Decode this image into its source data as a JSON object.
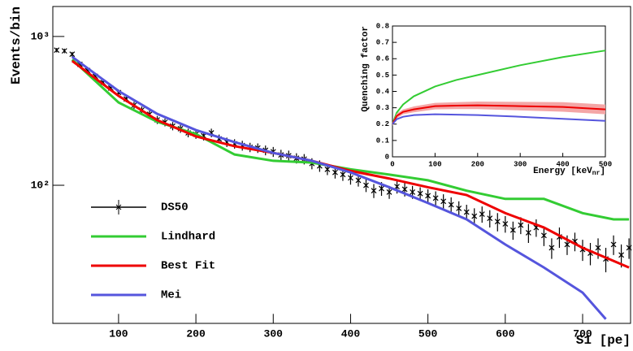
{
  "chart_data": [
    {
      "type": "line",
      "x_label": "S1 [pe]",
      "y_label": "Events/bin",
      "log_y": true,
      "xlim": [
        15,
        762
      ],
      "ylim": [
        11.8,
        1590
      ],
      "xticks": [
        100,
        200,
        300,
        400,
        500,
        600,
        700
      ],
      "yticks": [
        {
          "value": 100,
          "label": "10²"
        },
        {
          "value": 1000,
          "label": "10³"
        }
      ],
      "legend": "lower left",
      "series": [
        {
          "name": "DS50",
          "type": "errorbar",
          "color": "#000000",
          "x": [
            20,
            30,
            40,
            50,
            60,
            70,
            80,
            90,
            100,
            110,
            120,
            130,
            140,
            150,
            160,
            170,
            180,
            190,
            200,
            210,
            220,
            230,
            240,
            250,
            260,
            270,
            280,
            290,
            300,
            310,
            320,
            330,
            340,
            350,
            360,
            370,
            380,
            390,
            400,
            410,
            420,
            430,
            440,
            450,
            460,
            470,
            480,
            490,
            500,
            510,
            520,
            530,
            540,
            550,
            560,
            570,
            580,
            590,
            600,
            610,
            620,
            630,
            640,
            650,
            660,
            670,
            680,
            690,
            700,
            710,
            720,
            730,
            740,
            750,
            760
          ],
          "values": [
            810,
            800,
            760,
            650,
            590,
            540,
            490,
            450,
            420,
            380,
            345,
            320,
            300,
            275,
            265,
            250,
            240,
            225,
            220,
            215,
            225,
            205,
            195,
            190,
            185,
            180,
            178,
            172,
            168,
            160,
            158,
            152,
            150,
            140,
            135,
            128,
            122,
            118,
            112,
            108,
            100,
            92,
            95,
            90,
            98,
            94,
            90,
            88,
            85,
            82,
            78,
            74,
            70,
            66,
            62,
            64,
            60,
            57,
            55,
            50,
            54,
            48,
            52,
            46,
            38,
            45,
            40,
            42,
            37,
            35,
            38,
            32,
            40,
            34,
            38
          ],
          "errors": [
            28,
            28,
            28,
            25,
            24,
            23,
            22,
            21,
            20,
            19,
            19,
            18,
            17,
            17,
            16,
            16,
            15,
            15,
            15,
            15,
            15,
            14,
            14,
            14,
            14,
            13,
            13,
            13,
            13,
            13,
            13,
            12,
            12,
            12,
            12,
            11,
            11,
            11,
            11,
            10,
            10,
            10,
            10,
            9,
            10,
            10,
            9,
            9,
            9,
            9,
            9,
            9,
            8,
            8,
            8,
            8,
            8,
            8,
            7,
            7,
            7,
            7,
            7,
            7,
            6,
            7,
            6,
            6,
            6,
            6,
            6,
            6,
            6,
            6,
            6
          ]
        },
        {
          "name": "Lindhard",
          "color": "#33cc33",
          "x": [
            40,
            100,
            150,
            200,
            250,
            300,
            350,
            400,
            450,
            500,
            550,
            600,
            650,
            700,
            740,
            760
          ],
          "values": [
            700,
            360,
            267,
            221,
            161,
            146,
            142,
            128,
            118,
            108,
            92,
            81,
            81,
            65,
            59,
            59
          ]
        },
        {
          "name": "Best Fit",
          "color": "#ee0000",
          "x": [
            40,
            100,
            150,
            200,
            250,
            300,
            350,
            400,
            450,
            500,
            550,
            600,
            650,
            700,
            760
          ],
          "values": [
            685,
            399,
            274,
            213,
            183,
            165,
            146,
            125,
            111,
            97,
            86,
            65,
            52,
            38,
            28
          ]
        },
        {
          "name": "Mei",
          "color": "#5555dd",
          "x": [
            40,
            100,
            150,
            200,
            250,
            300,
            350,
            400,
            450,
            500,
            550,
            600,
            650,
            700,
            730
          ],
          "values": [
            730,
            430,
            302,
            235,
            195,
            165,
            146,
            122,
            97,
            76,
            59,
            40,
            28,
            19,
            12.6
          ]
        }
      ]
    },
    {
      "type": "line",
      "x_label": "Energy [keV",
      "x_label_sub": "nr",
      "x_label_end": "]",
      "y_label": "Quenching factor",
      "xlim": [
        0,
        500
      ],
      "ylim": [
        0,
        0.8
      ],
      "xticks": [
        0,
        100,
        200,
        300,
        400,
        500
      ],
      "yticks": [
        0,
        0.1,
        0.2,
        0.3,
        0.4,
        0.5,
        0.6,
        0.7,
        0.8
      ],
      "series": [
        {
          "color": "#33cc33",
          "x": [
            0,
            10,
            25,
            50,
            100,
            150,
            200,
            300,
            400,
            500
          ],
          "values": [
            0.2,
            0.27,
            0.32,
            0.37,
            0.43,
            0.47,
            0.5,
            0.56,
            0.61,
            0.65
          ]
        },
        {
          "color": "#ee0000",
          "band_color": "#f4a6a6",
          "x": [
            0,
            10,
            25,
            50,
            100,
            150,
            200,
            300,
            400,
            500
          ],
          "values": [
            0.2,
            0.25,
            0.275,
            0.29,
            0.31,
            0.313,
            0.315,
            0.31,
            0.305,
            0.29
          ],
          "band_low": [
            0.19,
            0.235,
            0.26,
            0.272,
            0.29,
            0.292,
            0.292,
            0.284,
            0.276,
            0.26
          ],
          "band_high": [
            0.21,
            0.265,
            0.29,
            0.308,
            0.33,
            0.334,
            0.338,
            0.336,
            0.334,
            0.32
          ]
        },
        {
          "color": "#5555dd",
          "x": [
            0,
            10,
            25,
            50,
            100,
            150,
            200,
            300,
            400,
            500
          ],
          "values": [
            0.2,
            0.23,
            0.245,
            0.255,
            0.26,
            0.258,
            0.255,
            0.245,
            0.232,
            0.22
          ]
        }
      ]
    }
  ]
}
